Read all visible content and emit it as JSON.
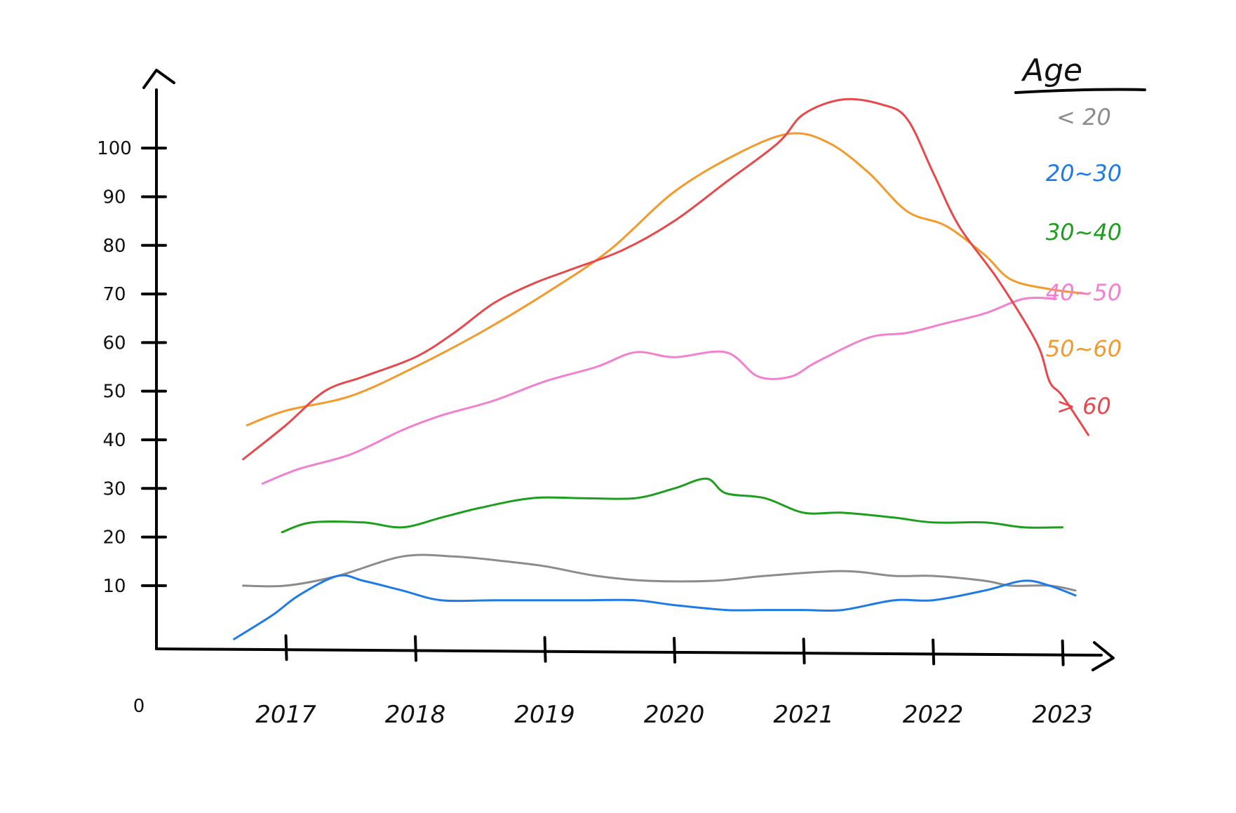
{
  "chart_data": {
    "type": "line",
    "title": "",
    "xlabel": "",
    "ylabel": "",
    "origin_label": "0",
    "x_ticks": [
      "2017",
      "2018",
      "2019",
      "2020",
      "2021",
      "2022",
      "2023"
    ],
    "y_ticks": [
      10,
      20,
      30,
      40,
      50,
      60,
      70,
      80,
      90,
      100
    ],
    "y_tick_labels": [
      "10",
      "20",
      "30",
      "40",
      "50",
      "60",
      "70",
      "80",
      "90",
      "100"
    ],
    "xlim": [
      2016.0,
      2023.3
    ],
    "ylim": [
      -3,
      112
    ],
    "grid": false,
    "legend": {
      "title": "Age",
      "position": "right",
      "entries": [
        {
          "label": "< 20",
          "color": "#8c8c8c"
        },
        {
          "label": "20~30",
          "color": "#1e7be6"
        },
        {
          "label": "30~40",
          "color": "#1e9e1e"
        },
        {
          "label": "40~50",
          "color": "#f27fcf"
        },
        {
          "label": "50~60",
          "color": "#f39a2b"
        },
        {
          "label": "> 60",
          "color": "#e8474b"
        }
      ]
    },
    "series": [
      {
        "name": "< 20",
        "color": "#8c8c8c",
        "points": [
          [
            2016.67,
            10
          ],
          [
            2017.0,
            10
          ],
          [
            2017.4,
            12
          ],
          [
            2017.9,
            16
          ],
          [
            2018.3,
            16
          ],
          [
            2018.7,
            15
          ],
          [
            2019.0,
            14
          ],
          [
            2019.4,
            12
          ],
          [
            2019.8,
            11
          ],
          [
            2020.3,
            11
          ],
          [
            2020.7,
            12
          ],
          [
            2021.3,
            13
          ],
          [
            2021.7,
            12
          ],
          [
            2022.0,
            12
          ],
          [
            2022.4,
            11
          ],
          [
            2022.6,
            10
          ],
          [
            2022.9,
            10
          ],
          [
            2023.1,
            9
          ]
        ]
      },
      {
        "name": "20~30",
        "color": "#1e7be6",
        "points": [
          [
            2016.6,
            -1
          ],
          [
            2016.9,
            4
          ],
          [
            2017.1,
            8
          ],
          [
            2017.4,
            12
          ],
          [
            2017.6,
            11
          ],
          [
            2017.9,
            9
          ],
          [
            2018.2,
            7
          ],
          [
            2018.6,
            7
          ],
          [
            2019.0,
            7
          ],
          [
            2019.3,
            7
          ],
          [
            2019.7,
            7
          ],
          [
            2020.0,
            6
          ],
          [
            2020.4,
            5
          ],
          [
            2020.7,
            5
          ],
          [
            2021.0,
            5
          ],
          [
            2021.3,
            5
          ],
          [
            2021.7,
            7
          ],
          [
            2022.0,
            7
          ],
          [
            2022.4,
            9
          ],
          [
            2022.7,
            11
          ],
          [
            2022.9,
            10
          ],
          [
            2023.1,
            8
          ]
        ]
      },
      {
        "name": "30~40",
        "color": "#1e9e1e",
        "points": [
          [
            2016.97,
            21
          ],
          [
            2017.2,
            23
          ],
          [
            2017.6,
            23
          ],
          [
            2017.9,
            22
          ],
          [
            2018.2,
            24
          ],
          [
            2018.5,
            26
          ],
          [
            2018.9,
            28
          ],
          [
            2019.3,
            28
          ],
          [
            2019.7,
            28
          ],
          [
            2020.0,
            30
          ],
          [
            2020.25,
            32
          ],
          [
            2020.4,
            29
          ],
          [
            2020.7,
            28
          ],
          [
            2021.0,
            25
          ],
          [
            2021.3,
            25
          ],
          [
            2021.7,
            24
          ],
          [
            2022.0,
            23
          ],
          [
            2022.4,
            23
          ],
          [
            2022.7,
            22
          ],
          [
            2023.0,
            22
          ]
        ]
      },
      {
        "name": "40~50",
        "color": "#f27fcf",
        "points": [
          [
            2016.82,
            31
          ],
          [
            2017.1,
            34
          ],
          [
            2017.5,
            37
          ],
          [
            2017.9,
            42
          ],
          [
            2018.2,
            45
          ],
          [
            2018.6,
            48
          ],
          [
            2019.0,
            52
          ],
          [
            2019.4,
            55
          ],
          [
            2019.7,
            58
          ],
          [
            2020.0,
            57
          ],
          [
            2020.4,
            58
          ],
          [
            2020.65,
            53
          ],
          [
            2020.9,
            53
          ],
          [
            2021.1,
            56
          ],
          [
            2021.5,
            61
          ],
          [
            2021.8,
            62
          ],
          [
            2022.1,
            64
          ],
          [
            2022.4,
            66
          ],
          [
            2022.7,
            69
          ],
          [
            2022.95,
            69
          ]
        ]
      },
      {
        "name": "50~60",
        "color": "#f39a2b",
        "points": [
          [
            2016.7,
            43
          ],
          [
            2017.0,
            46
          ],
          [
            2017.5,
            49
          ],
          [
            2018.0,
            55
          ],
          [
            2018.5,
            62
          ],
          [
            2019.0,
            70
          ],
          [
            2019.5,
            79
          ],
          [
            2020.0,
            91
          ],
          [
            2020.5,
            99
          ],
          [
            2020.9,
            103
          ],
          [
            2021.2,
            101
          ],
          [
            2021.5,
            95
          ],
          [
            2021.8,
            87
          ],
          [
            2022.1,
            84
          ],
          [
            2022.4,
            78
          ],
          [
            2022.6,
            73
          ],
          [
            2022.9,
            71
          ],
          [
            2023.2,
            70
          ]
        ]
      },
      {
        "name": "> 60",
        "color": "#e8474b",
        "points": [
          [
            2016.67,
            36
          ],
          [
            2017.0,
            43
          ],
          [
            2017.3,
            50
          ],
          [
            2017.6,
            53
          ],
          [
            2018.0,
            57
          ],
          [
            2018.3,
            62
          ],
          [
            2018.6,
            68
          ],
          [
            2018.9,
            72
          ],
          [
            2019.2,
            75
          ],
          [
            2019.6,
            79
          ],
          [
            2020.0,
            85
          ],
          [
            2020.4,
            93
          ],
          [
            2020.8,
            101
          ],
          [
            2021.0,
            107
          ],
          [
            2021.3,
            110
          ],
          [
            2021.6,
            109
          ],
          [
            2021.8,
            106
          ],
          [
            2022.0,
            95
          ],
          [
            2022.2,
            84
          ],
          [
            2022.5,
            73
          ],
          [
            2022.8,
            60
          ],
          [
            2022.9,
            52
          ],
          [
            2023.0,
            49
          ],
          [
            2023.2,
            41
          ]
        ]
      }
    ]
  }
}
